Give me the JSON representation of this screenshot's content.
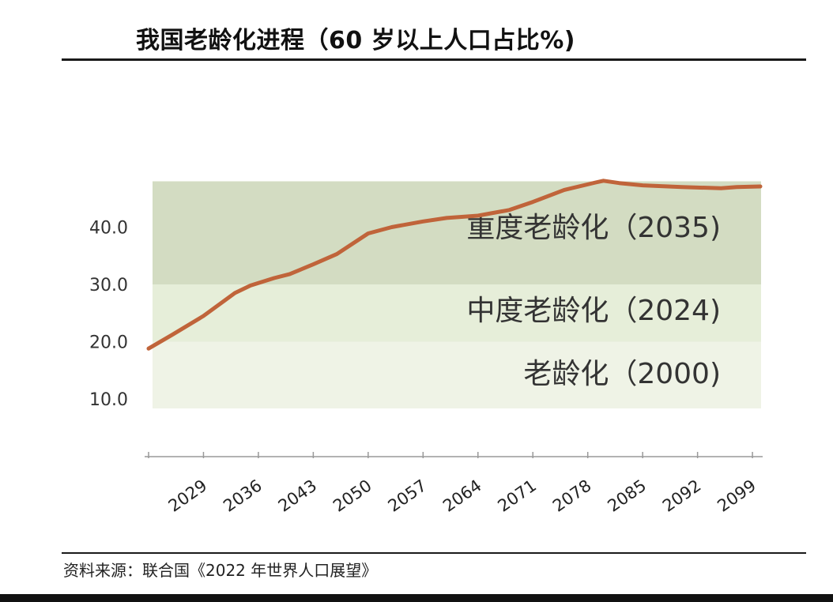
{
  "title": "我国老龄化进程（60 岁以上人口占比%)",
  "source": "资料来源：联合国《2022 年世界人口展望》",
  "colors": {
    "line": "#c0643a",
    "zone_severe": "#d3dcc2",
    "zone_moderate": "#e6eed9",
    "zone_aging": "#eff3e6",
    "axis": "#999999"
  },
  "chart_data": {
    "type": "line",
    "title": "我国老龄化进程（60 岁以上人口占比%)",
    "xlabel": "",
    "ylabel": "",
    "yticks": [
      "10.0",
      "20.0",
      "30.0",
      "40.0"
    ],
    "ylim": [
      10,
      52
    ],
    "xticks": [
      "2029",
      "2036",
      "2043",
      "2050",
      "2057",
      "2064",
      "2071",
      "2078",
      "2085",
      "2092",
      "2099"
    ],
    "xlim": [
      2022,
      2100
    ],
    "grid": false,
    "zones": [
      {
        "label": "老龄化（2000)",
        "from": 10,
        "to": 20
      },
      {
        "label": "中度老龄化（2024)",
        "from": 20,
        "to": 30
      },
      {
        "label": "重度老龄化（2035)",
        "from": 30,
        "to": 48
      }
    ],
    "series": [
      {
        "x": [
          2022,
          2025,
          2029,
          2033,
          2035,
          2038,
          2040,
          2043,
          2046,
          2050,
          2053,
          2057,
          2060,
          2064,
          2068,
          2071,
          2075,
          2079,
          2080,
          2082,
          2085,
          2090,
          2095,
          2097,
          2100
        ],
        "values": [
          18.8,
          21.2,
          24.5,
          28.5,
          29.8,
          31.1,
          31.8,
          33.5,
          35.3,
          38.9,
          40.0,
          41.0,
          41.6,
          42.0,
          43.0,
          44.4,
          46.5,
          47.8,
          48.1,
          47.7,
          47.3,
          47.0,
          46.8,
          47.0,
          47.1
        ]
      }
    ]
  }
}
